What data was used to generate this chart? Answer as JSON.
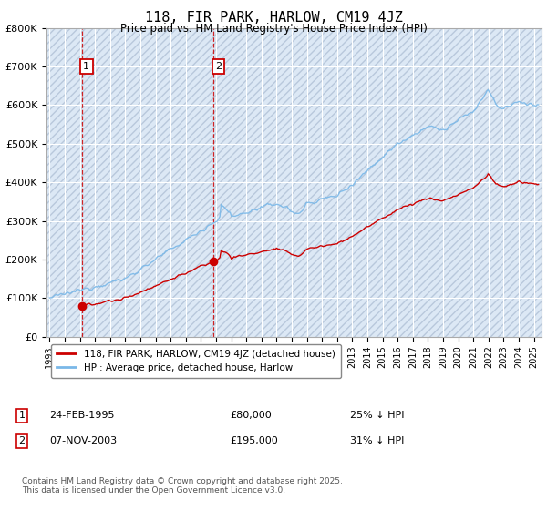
{
  "title": "118, FIR PARK, HARLOW, CM19 4JZ",
  "subtitle": "Price paid vs. HM Land Registry's House Price Index (HPI)",
  "ylim": [
    0,
    800000
  ],
  "yticks": [
    0,
    100000,
    200000,
    300000,
    400000,
    500000,
    600000,
    700000,
    800000
  ],
  "ytick_labels": [
    "£0",
    "£100K",
    "£200K",
    "£300K",
    "£400K",
    "£500K",
    "£600K",
    "£700K",
    "£800K"
  ],
  "hpi_color": "#7ab8e8",
  "price_color": "#cc0000",
  "annotation1_date": "24-FEB-1995",
  "annotation1_price": "£80,000",
  "annotation1_hpi": "25% ↓ HPI",
  "annotation2_date": "07-NOV-2003",
  "annotation2_price": "£195,000",
  "annotation2_hpi": "31% ↓ HPI",
  "legend_label1": "118, FIR PARK, HARLOW, CM19 4JZ (detached house)",
  "legend_label2": "HPI: Average price, detached house, Harlow",
  "footer": "Contains HM Land Registry data © Crown copyright and database right 2025.\nThis data is licensed under the Open Government Licence v3.0.",
  "background_color": "#ffffff",
  "plot_bg_color": "#dce8f5",
  "hatch_color": "#b8c8dc",
  "grid_color": "#ffffff",
  "vline1_x": 1995.13,
  "vline2_x": 2003.85,
  "marker1_x": 1995.13,
  "marker1_y": 80000,
  "marker2_x": 2003.85,
  "marker2_y": 195000,
  "xlim_left": 1992.8,
  "xlim_right": 2025.5
}
